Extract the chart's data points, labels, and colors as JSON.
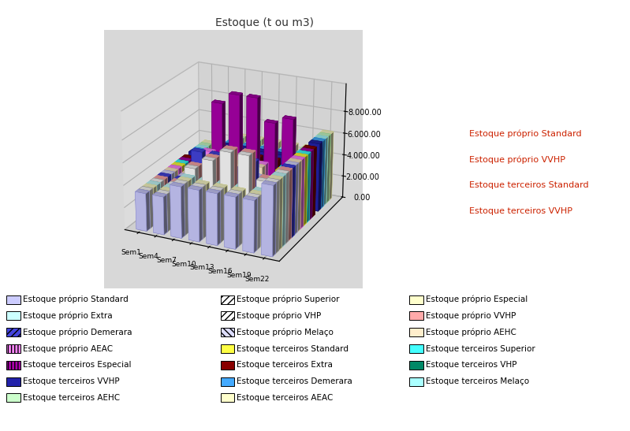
{
  "title": "Estoque (t ou m3)",
  "weeks": [
    "Sem1",
    "Sem4",
    "Sem7",
    "Sem10",
    "Sem13",
    "Sem16",
    "Sem19",
    "Sem22"
  ],
  "yticks": [
    0,
    2000,
    4000,
    6000,
    8000
  ],
  "ymax": 10500,
  "series_order": [
    "Estoque próprio Standard",
    "Estoque próprio Superior",
    "Estoque próprio Especial",
    "Estoque próprio Extra",
    "Estoque próprio VHP",
    "Estoque próprio VVHP",
    "Estoque próprio Demerara",
    "Estoque próprio Melaço",
    "Estoque próprio AEHC",
    "Estoque próprio AEAC",
    "Estoque terceiros Standard",
    "Estoque terceiros Superior",
    "Estoque terceiros Especial",
    "Estoque terceiros Extra",
    "Estoque terceiros VHP",
    "Estoque terceiros VVHP",
    "Estoque terceiros Demerara",
    "Estoque terceiros Melaço",
    "Estoque terceiros AEHC",
    "Estoque terceiros AEAC"
  ],
  "series": {
    "Estoque próprio Standard": [
      3400,
      3400,
      4600,
      4600,
      4600,
      4600,
      4600,
      6200
    ],
    "Estoque próprio Superior": [
      3400,
      3400,
      4600,
      4600,
      4600,
      4600,
      4600,
      6200
    ],
    "Estoque próprio Especial": [
      3400,
      3400,
      4600,
      4600,
      4600,
      4600,
      4600,
      6200
    ],
    "Estoque próprio Extra": [
      3400,
      3400,
      4600,
      4600,
      4600,
      4600,
      4600,
      6200
    ],
    "Estoque próprio VHP": [
      3400,
      3400,
      5200,
      6200,
      7200,
      7200,
      5200,
      6200
    ],
    "Estoque próprio VVHP": [
      3400,
      3400,
      5200,
      6200,
      7200,
      7200,
      5200,
      6200
    ],
    "Estoque próprio Demerara": [
      3400,
      3400,
      6200,
      6200,
      5200,
      6200,
      4600,
      6200
    ],
    "Estoque próprio Melaço": [
      3400,
      3400,
      4600,
      4600,
      4600,
      4600,
      4600,
      6200
    ],
    "Estoque próprio AEHC": [
      3400,
      3400,
      5200,
      5500,
      5200,
      5200,
      4200,
      6200
    ],
    "Estoque próprio AEAC": [
      3400,
      3400,
      5500,
      5500,
      5500,
      5200,
      4200,
      6200
    ],
    "Estoque terceiros Standard": [
      3400,
      3400,
      4600,
      4600,
      4600,
      4600,
      4600,
      6200
    ],
    "Estoque terceiros Superior": [
      3400,
      3400,
      4600,
      4600,
      4600,
      4600,
      4600,
      6200
    ],
    "Estoque terceiros Especial": [
      3400,
      3400,
      9200,
      10200,
      10200,
      8200,
      8800,
      6200
    ],
    "Estoque terceiros Extra": [
      3400,
      3400,
      4600,
      4600,
      4600,
      4600,
      4600,
      6200
    ],
    "Estoque terceiros VHP": [
      0,
      0,
      1800,
      1800,
      1800,
      0,
      0,
      0
    ],
    "Estoque terceiros VVHP": [
      3400,
      3400,
      4600,
      4600,
      4600,
      4600,
      4600,
      6200
    ],
    "Estoque terceiros Demerara": [
      3400,
      3400,
      4600,
      4600,
      4600,
      4600,
      4600,
      6200
    ],
    "Estoque terceiros Melaço": [
      3400,
      3400,
      4600,
      4600,
      4600,
      4600,
      4600,
      6200
    ],
    "Estoque terceiros AEHC": [
      3400,
      3400,
      4600,
      4600,
      4600,
      4600,
      4600,
      6200
    ],
    "Estoque terceiros AEAC": [
      3400,
      3400,
      4600,
      4600,
      4600,
      4600,
      4600,
      6200
    ]
  },
  "bar_styles": {
    "Estoque próprio Standard": {
      "facecolor": "#ccccff",
      "edgecolor": "#8888cc",
      "hatch": ""
    },
    "Estoque próprio Superior": {
      "facecolor": "#ffffff",
      "edgecolor": "#888888",
      "hatch": "////"
    },
    "Estoque próprio Especial": {
      "facecolor": "#ffffcc",
      "edgecolor": "#cccc88",
      "hatch": ""
    },
    "Estoque próprio Extra": {
      "facecolor": "#ccffff",
      "edgecolor": "#88cccc",
      "hatch": ""
    },
    "Estoque próprio VHP": {
      "facecolor": "#ffffff",
      "edgecolor": "#888888",
      "hatch": "////"
    },
    "Estoque próprio VVHP": {
      "facecolor": "#ffaaaa",
      "edgecolor": "#cc8888",
      "hatch": ""
    },
    "Estoque próprio Demerara": {
      "facecolor": "#4444dd",
      "edgecolor": "#2222aa",
      "hatch": "////"
    },
    "Estoque próprio Melaço": {
      "facecolor": "#ddddff",
      "edgecolor": "#8888cc",
      "hatch": "\\\\\\\\"
    },
    "Estoque próprio AEHC": {
      "facecolor": "#ffeecc",
      "edgecolor": "#ccaa88",
      "hatch": ""
    },
    "Estoque próprio AEAC": {
      "facecolor": "#ff88ff",
      "edgecolor": "#cc44cc",
      "hatch": "||||"
    },
    "Estoque terceiros Standard": {
      "facecolor": "#ffff44",
      "edgecolor": "#cccc00",
      "hatch": ""
    },
    "Estoque terceiros Superior": {
      "facecolor": "#44ffff",
      "edgecolor": "#00cccc",
      "hatch": ""
    },
    "Estoque terceiros Especial": {
      "facecolor": "#aa00aa",
      "edgecolor": "#660066",
      "hatch": "||||"
    },
    "Estoque terceiros Extra": {
      "facecolor": "#880000",
      "edgecolor": "#440000",
      "hatch": ""
    },
    "Estoque terceiros VHP": {
      "facecolor": "#008866",
      "edgecolor": "#005544",
      "hatch": ""
    },
    "Estoque terceiros VVHP": {
      "facecolor": "#2222aa",
      "edgecolor": "#111166",
      "hatch": ""
    },
    "Estoque terceiros Demerara": {
      "facecolor": "#44aaff",
      "edgecolor": "#2288cc",
      "hatch": ""
    },
    "Estoque terceiros Melaço": {
      "facecolor": "#aaffff",
      "edgecolor": "#88cccc",
      "hatch": ""
    },
    "Estoque terceiros AEHC": {
      "facecolor": "#ccffcc",
      "edgecolor": "#88cc88",
      "hatch": ""
    },
    "Estoque terceiros AEAC": {
      "facecolor": "#ffffcc",
      "edgecolor": "#cccc88",
      "hatch": ""
    }
  },
  "legend_items_col1": [
    [
      "Estoque próprio Standard",
      "#ccccff",
      ""
    ],
    [
      "Estoque próprio Extra",
      "#ccffff",
      ""
    ],
    [
      "Estoque próprio Demerara",
      "#4444dd",
      "////"
    ],
    [
      "Estoque próprio AEAC",
      "#ff88ff",
      "||||"
    ],
    [
      "Estoque terceiros Especial",
      "#aa00aa",
      "||||"
    ],
    [
      "Estoque terceiros VVHP",
      "#2222aa",
      ""
    ],
    [
      "Estoque terceiros AEHC",
      "#ccffcc",
      ""
    ]
  ],
  "legend_items_col2": [
    [
      "Estoque próprio Superior",
      "#ffffff",
      "////"
    ],
    [
      "Estoque próprio VHP",
      "#ffffff",
      "////"
    ],
    [
      "Estoque próprio Melaço",
      "#ddddff",
      "\\\\\\\\"
    ],
    [
      "Estoque terceiros Standard",
      "#ffff44",
      ""
    ],
    [
      "Estoque terceiros Extra",
      "#880000",
      ""
    ],
    [
      "Estoque terceiros Demerara",
      "#44aaff",
      ""
    ],
    [
      "Estoque terceiros AEAC",
      "#ffffcc",
      ""
    ]
  ],
  "legend_items_col3": [
    [
      "Estoque próprio Especial",
      "#ffffcc",
      ""
    ],
    [
      "Estoque próprio VVHP",
      "#ffaaaa",
      ""
    ],
    [
      "Estoque próprio AEHC",
      "#ffeecc",
      ""
    ],
    [
      "Estoque terceiros Superior",
      "#44ffff",
      ""
    ],
    [
      "Estoque terceiros VHP",
      "#008866",
      ""
    ],
    [
      "Estoque terceiros Melaço",
      "#aaffff",
      ""
    ]
  ],
  "right_labels": [
    "Estoque próprio Standard",
    "Estoque próprio VVHP",
    "Estoque terceiros Standard",
    "Estoque terceiros VVHP"
  ],
  "bg_color": "#e8e8e8",
  "chart_bg": "#d4d4d4"
}
